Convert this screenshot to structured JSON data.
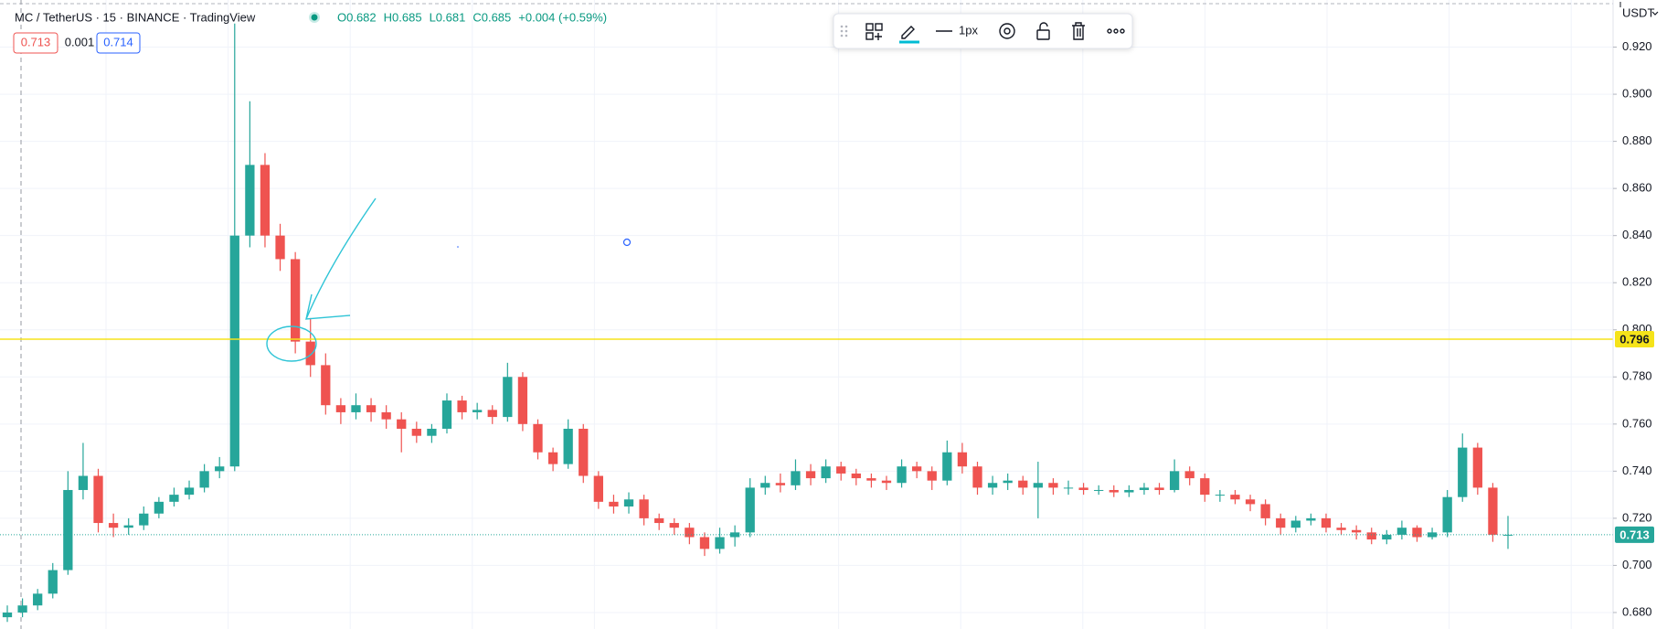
{
  "chart_data": {
    "type": "candlestick",
    "title": "MC / TetherUS · 15 · BINANCE · TradingView",
    "ohlc_legend": [
      "O0.682",
      "H0.685",
      "L0.681",
      "C0.685",
      "+0.004 (+0.59%)"
    ],
    "quote_boxes": [
      "0.713",
      "0.001",
      "0.714"
    ],
    "currency": "USDT",
    "toolbar_line_width": "1px",
    "up_color": "#26a69a",
    "down_color": "#ef5350",
    "open": [
      0.678,
      0.68,
      0.683,
      0.688,
      0.698,
      0.732,
      0.738,
      0.718,
      0.716,
      0.717,
      0.722,
      0.727,
      0.73,
      0.733,
      0.74,
      0.742,
      0.84,
      0.87,
      0.84,
      0.83,
      0.795,
      0.785,
      0.768,
      0.765,
      0.768,
      0.765,
      0.762,
      0.758,
      0.755,
      0.758,
      0.77,
      0.765,
      0.766,
      0.763,
      0.78,
      0.76,
      0.748,
      0.743,
      0.758,
      0.738,
      0.727,
      0.725,
      0.728,
      0.72,
      0.718,
      0.716,
      0.712,
      0.707,
      0.712,
      0.714,
      0.733,
      0.735,
      0.734,
      0.74,
      0.737,
      0.742,
      0.739,
      0.737,
      0.736,
      0.735,
      0.742,
      0.74,
      0.736,
      0.748,
      0.742,
      0.733,
      0.735,
      0.736,
      0.733,
      0.735,
      0.733,
      0.733,
      0.732,
      0.732,
      0.731,
      0.732,
      0.733,
      0.732,
      0.74,
      0.737,
      0.73,
      0.73,
      0.728,
      0.726,
      0.72,
      0.716,
      0.719,
      0.72,
      0.716,
      0.715,
      0.714,
      0.711,
      0.713,
      0.716,
      0.712,
      0.714,
      0.729,
      0.75,
      0.733,
      0.713
    ],
    "high": [
      0.683,
      0.686,
      0.69,
      0.701,
      0.74,
      0.752,
      0.741,
      0.722,
      0.72,
      0.725,
      0.729,
      0.733,
      0.736,
      0.743,
      0.746,
      0.93,
      0.897,
      0.875,
      0.845,
      0.833,
      0.805,
      0.79,
      0.771,
      0.773,
      0.771,
      0.768,
      0.765,
      0.761,
      0.76,
      0.773,
      0.772,
      0.769,
      0.768,
      0.786,
      0.782,
      0.762,
      0.75,
      0.762,
      0.76,
      0.74,
      0.73,
      0.731,
      0.73,
      0.722,
      0.72,
      0.718,
      0.714,
      0.716,
      0.717,
      0.737,
      0.738,
      0.739,
      0.745,
      0.743,
      0.745,
      0.744,
      0.741,
      0.739,
      0.738,
      0.745,
      0.744,
      0.742,
      0.753,
      0.752,
      0.744,
      0.738,
      0.739,
      0.738,
      0.744,
      0.737,
      0.736,
      0.735,
      0.734,
      0.734,
      0.734,
      0.735,
      0.735,
      0.745,
      0.742,
      0.739,
      0.732,
      0.732,
      0.73,
      0.728,
      0.722,
      0.721,
      0.722,
      0.722,
      0.718,
      0.717,
      0.716,
      0.715,
      0.719,
      0.717,
      0.716,
      0.732,
      0.756,
      0.752,
      0.735,
      0.721
    ],
    "low": [
      0.676,
      0.678,
      0.681,
      0.686,
      0.696,
      0.728,
      0.714,
      0.712,
      0.713,
      0.715,
      0.72,
      0.725,
      0.728,
      0.731,
      0.737,
      0.74,
      0.835,
      0.835,
      0.825,
      0.79,
      0.78,
      0.764,
      0.76,
      0.762,
      0.761,
      0.758,
      0.748,
      0.752,
      0.752,
      0.756,
      0.762,
      0.762,
      0.76,
      0.761,
      0.757,
      0.745,
      0.74,
      0.741,
      0.735,
      0.724,
      0.722,
      0.722,
      0.717,
      0.715,
      0.713,
      0.709,
      0.704,
      0.705,
      0.708,
      0.712,
      0.73,
      0.731,
      0.732,
      0.734,
      0.735,
      0.736,
      0.734,
      0.733,
      0.732,
      0.733,
      0.737,
      0.732,
      0.734,
      0.739,
      0.73,
      0.73,
      0.732,
      0.73,
      0.72,
      0.73,
      0.73,
      0.73,
      0.73,
      0.729,
      0.729,
      0.73,
      0.73,
      0.731,
      0.734,
      0.727,
      0.727,
      0.726,
      0.723,
      0.717,
      0.713,
      0.714,
      0.717,
      0.714,
      0.713,
      0.711,
      0.709,
      0.709,
      0.711,
      0.71,
      0.711,
      0.712,
      0.727,
      0.73,
      0.71,
      0.707
    ],
    "close": [
      0.68,
      0.683,
      0.688,
      0.698,
      0.732,
      0.738,
      0.718,
      0.716,
      0.717,
      0.722,
      0.727,
      0.73,
      0.733,
      0.74,
      0.742,
      0.84,
      0.87,
      0.84,
      0.83,
      0.795,
      0.785,
      0.768,
      0.765,
      0.768,
      0.765,
      0.762,
      0.758,
      0.755,
      0.758,
      0.77,
      0.765,
      0.766,
      0.763,
      0.78,
      0.76,
      0.748,
      0.743,
      0.758,
      0.738,
      0.727,
      0.725,
      0.728,
      0.72,
      0.718,
      0.716,
      0.712,
      0.707,
      0.712,
      0.714,
      0.733,
      0.735,
      0.734,
      0.74,
      0.737,
      0.742,
      0.739,
      0.737,
      0.736,
      0.735,
      0.742,
      0.74,
      0.736,
      0.748,
      0.742,
      0.733,
      0.735,
      0.736,
      0.733,
      0.735,
      0.733,
      0.733,
      0.732,
      0.732,
      0.731,
      0.732,
      0.733,
      0.732,
      0.74,
      0.737,
      0.73,
      0.73,
      0.728,
      0.726,
      0.72,
      0.716,
      0.719,
      0.72,
      0.716,
      0.715,
      0.714,
      0.711,
      0.713,
      0.716,
      0.712,
      0.714,
      0.729,
      0.75,
      0.733,
      0.713,
      0.713
    ],
    "ylim": [
      0.673,
      0.94
    ],
    "yticks": [
      {
        "value": 0.68,
        "label": "0.680"
      },
      {
        "value": 0.7,
        "label": "0.700"
      },
      {
        "value": 0.72,
        "label": "0.720"
      },
      {
        "value": 0.74,
        "label": "0.740"
      },
      {
        "value": 0.76,
        "label": "0.760"
      },
      {
        "value": 0.78,
        "label": "0.780"
      },
      {
        "value": 0.8,
        "label": "0.800"
      },
      {
        "value": 0.82,
        "label": "0.820"
      },
      {
        "value": 0.84,
        "label": "0.840"
      },
      {
        "value": 0.86,
        "label": "0.860"
      },
      {
        "value": 0.88,
        "label": "0.880"
      },
      {
        "value": 0.9,
        "label": "0.900"
      },
      {
        "value": 0.92,
        "label": "0.920"
      }
    ],
    "grid": true,
    "price_line": {
      "value": 0.796,
      "color": "#f5e31a"
    },
    "last_price": 0.713
  }
}
